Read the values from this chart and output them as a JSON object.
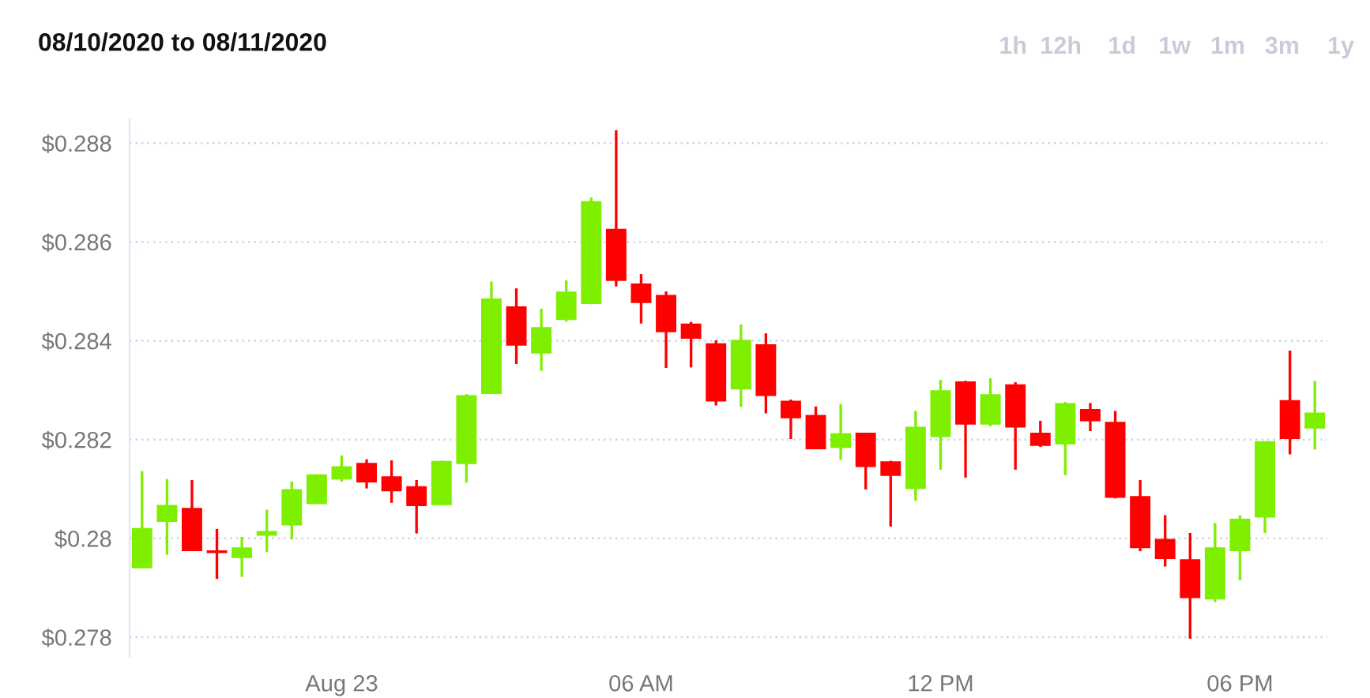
{
  "chart_data": {
    "type": "candlestick",
    "title": "08/10/2020 to 08/11/2020",
    "annotations": [
      "1h",
      "12h",
      "1d",
      "1w",
      "1m",
      "3m",
      "1y"
    ],
    "x": [
      "2020-08-22T20:00",
      "2020-08-22T20:30",
      "2020-08-22T21:00",
      "2020-08-22T21:30",
      "2020-08-22T22:00",
      "2020-08-22T22:30",
      "2020-08-22T23:00",
      "2020-08-22T23:30",
      "2020-08-23T00:00",
      "2020-08-23T00:30",
      "2020-08-23T01:00",
      "2020-08-23T01:30",
      "2020-08-23T02:00",
      "2020-08-23T02:30",
      "2020-08-23T03:00",
      "2020-08-23T03:30",
      "2020-08-23T04:00",
      "2020-08-23T04:30",
      "2020-08-23T05:00",
      "2020-08-23T05:30",
      "2020-08-23T06:00",
      "2020-08-23T06:30",
      "2020-08-23T07:00",
      "2020-08-23T07:30",
      "2020-08-23T08:00",
      "2020-08-23T08:30",
      "2020-08-23T09:00",
      "2020-08-23T09:30",
      "2020-08-23T10:00",
      "2020-08-23T10:30",
      "2020-08-23T11:00",
      "2020-08-23T11:30",
      "2020-08-23T12:00",
      "2020-08-23T12:30",
      "2020-08-23T13:00",
      "2020-08-23T13:30",
      "2020-08-23T14:00",
      "2020-08-23T14:30",
      "2020-08-23T15:00",
      "2020-08-23T15:30",
      "2020-08-23T16:00",
      "2020-08-23T16:30",
      "2020-08-23T17:00",
      "2020-08-23T17:30",
      "2020-08-23T18:00",
      "2020-08-23T18:30",
      "2020-08-23T19:00",
      "2020-08-23T19:30"
    ],
    "ohlc": [
      [
        0.27941,
        0.28136,
        0.27941,
        0.28019
      ],
      [
        0.28035,
        0.2812,
        0.27967,
        0.28066
      ],
      [
        0.2806,
        0.28118,
        0.27974,
        0.27976
      ],
      [
        0.27974,
        0.28019,
        0.27918,
        0.27972
      ],
      [
        0.27962,
        0.28003,
        0.27922,
        0.2798
      ],
      [
        0.28007,
        0.28058,
        0.27972,
        0.28013
      ],
      [
        0.28028,
        0.28115,
        0.27998,
        0.28098
      ],
      [
        0.28071,
        0.2813,
        0.28071,
        0.28128
      ],
      [
        0.28121,
        0.28168,
        0.28115,
        0.28144
      ],
      [
        0.28151,
        0.2816,
        0.28101,
        0.28115
      ],
      [
        0.28124,
        0.28158,
        0.28072,
        0.28097
      ],
      [
        0.28104,
        0.28118,
        0.2801,
        0.28067
      ],
      [
        0.28069,
        0.28157,
        0.28069,
        0.28155
      ],
      [
        0.28152,
        0.28292,
        0.28113,
        0.28288
      ],
      [
        0.28294,
        0.2852,
        0.28294,
        0.28484
      ],
      [
        0.28468,
        0.28506,
        0.28353,
        0.28392
      ],
      [
        0.28376,
        0.28465,
        0.28339,
        0.28426
      ],
      [
        0.28444,
        0.28522,
        0.28439,
        0.28498
      ],
      [
        0.28476,
        0.2869,
        0.28474,
        0.28681
      ],
      [
        0.28625,
        0.28826,
        0.2851,
        0.28523
      ],
      [
        0.28514,
        0.28535,
        0.28435,
        0.28478
      ],
      [
        0.28491,
        0.285,
        0.28345,
        0.28419
      ],
      [
        0.28433,
        0.28438,
        0.28346,
        0.28406
      ],
      [
        0.28393,
        0.28401,
        0.28269,
        0.28279
      ],
      [
        0.28303,
        0.28433,
        0.28266,
        0.284
      ],
      [
        0.28391,
        0.28415,
        0.28253,
        0.2829
      ],
      [
        0.28277,
        0.28281,
        0.28201,
        0.28245
      ],
      [
        0.28248,
        0.28267,
        0.28182,
        0.28182
      ],
      [
        0.28185,
        0.28272,
        0.28159,
        0.28211
      ],
      [
        0.28212,
        0.28212,
        0.28099,
        0.28146
      ],
      [
        0.28154,
        0.28157,
        0.28024,
        0.28128
      ],
      [
        0.28102,
        0.28258,
        0.28076,
        0.28224
      ],
      [
        0.28207,
        0.28321,
        0.28139,
        0.28298
      ],
      [
        0.28316,
        0.28319,
        0.28123,
        0.28232
      ],
      [
        0.28232,
        0.28324,
        0.28227,
        0.2829
      ],
      [
        0.2831,
        0.28316,
        0.28139,
        0.28226
      ],
      [
        0.28212,
        0.28238,
        0.28185,
        0.28189
      ],
      [
        0.28192,
        0.28276,
        0.28128,
        0.28272
      ],
      [
        0.2826,
        0.28274,
        0.28217,
        0.28239
      ],
      [
        0.28234,
        0.28258,
        0.28081,
        0.28084
      ],
      [
        0.28084,
        0.28118,
        0.27974,
        0.27982
      ],
      [
        0.27997,
        0.28047,
        0.27943,
        0.2796
      ],
      [
        0.27956,
        0.28011,
        0.27797,
        0.27881
      ],
      [
        0.27878,
        0.28031,
        0.27871,
        0.2798
      ],
      [
        0.27976,
        0.28047,
        0.27915,
        0.28038
      ],
      [
        0.28044,
        0.28195,
        0.28011,
        0.28195
      ],
      [
        0.28278,
        0.2838,
        0.2817,
        0.28203
      ],
      [
        0.28224,
        0.28319,
        0.2818,
        0.28253
      ]
    ],
    "colors": [
      "#7fef00",
      "#7fef00",
      "#ff0000",
      "#ff0000",
      "#7fef00",
      "#7fef00",
      "#7fef00",
      "#7fef00",
      "#7fef00",
      "#ff0000",
      "#ff0000",
      "#ff0000",
      "#7fef00",
      "#7fef00",
      "#7fef00",
      "#ff0000",
      "#7fef00",
      "#7fef00",
      "#7fef00",
      "#ff0000",
      "#ff0000",
      "#ff0000",
      "#ff0000",
      "#ff0000",
      "#7fef00",
      "#ff0000",
      "#ff0000",
      "#ff0000",
      "#7fef00",
      "#ff0000",
      "#ff0000",
      "#7fef00",
      "#7fef00",
      "#ff0000",
      "#7fef00",
      "#ff0000",
      "#ff0000",
      "#7fef00",
      "#ff0000",
      "#ff0000",
      "#ff0000",
      "#ff0000",
      "#ff0000",
      "#7fef00",
      "#7fef00",
      "#7fef00",
      "#ff0000",
      "#7fef00"
    ],
    "xlim": [
      "2020-08-22T19:45",
      "2020-08-23T19:45"
    ],
    "xticks": [
      {
        "value": "2020-08-23T00:00",
        "label": "Aug 23"
      },
      {
        "value": "2020-08-23T06:00",
        "label": "06 AM"
      },
      {
        "value": "2020-08-23T12:00",
        "label": "12 PM"
      },
      {
        "value": "2020-08-23T18:00",
        "label": "06 PM"
      }
    ],
    "ylim": [
      0.2776,
      0.2885
    ],
    "yticks": [
      {
        "value": 0.278,
        "label": "$0.278"
      },
      {
        "value": 0.28,
        "label": "$0.28"
      },
      {
        "value": 0.282,
        "label": "$0.282"
      },
      {
        "value": 0.284,
        "label": "$0.284"
      },
      {
        "value": 0.286,
        "label": "$0.286"
      },
      {
        "value": 0.288,
        "label": "$0.288"
      }
    ],
    "grid": "y"
  }
}
